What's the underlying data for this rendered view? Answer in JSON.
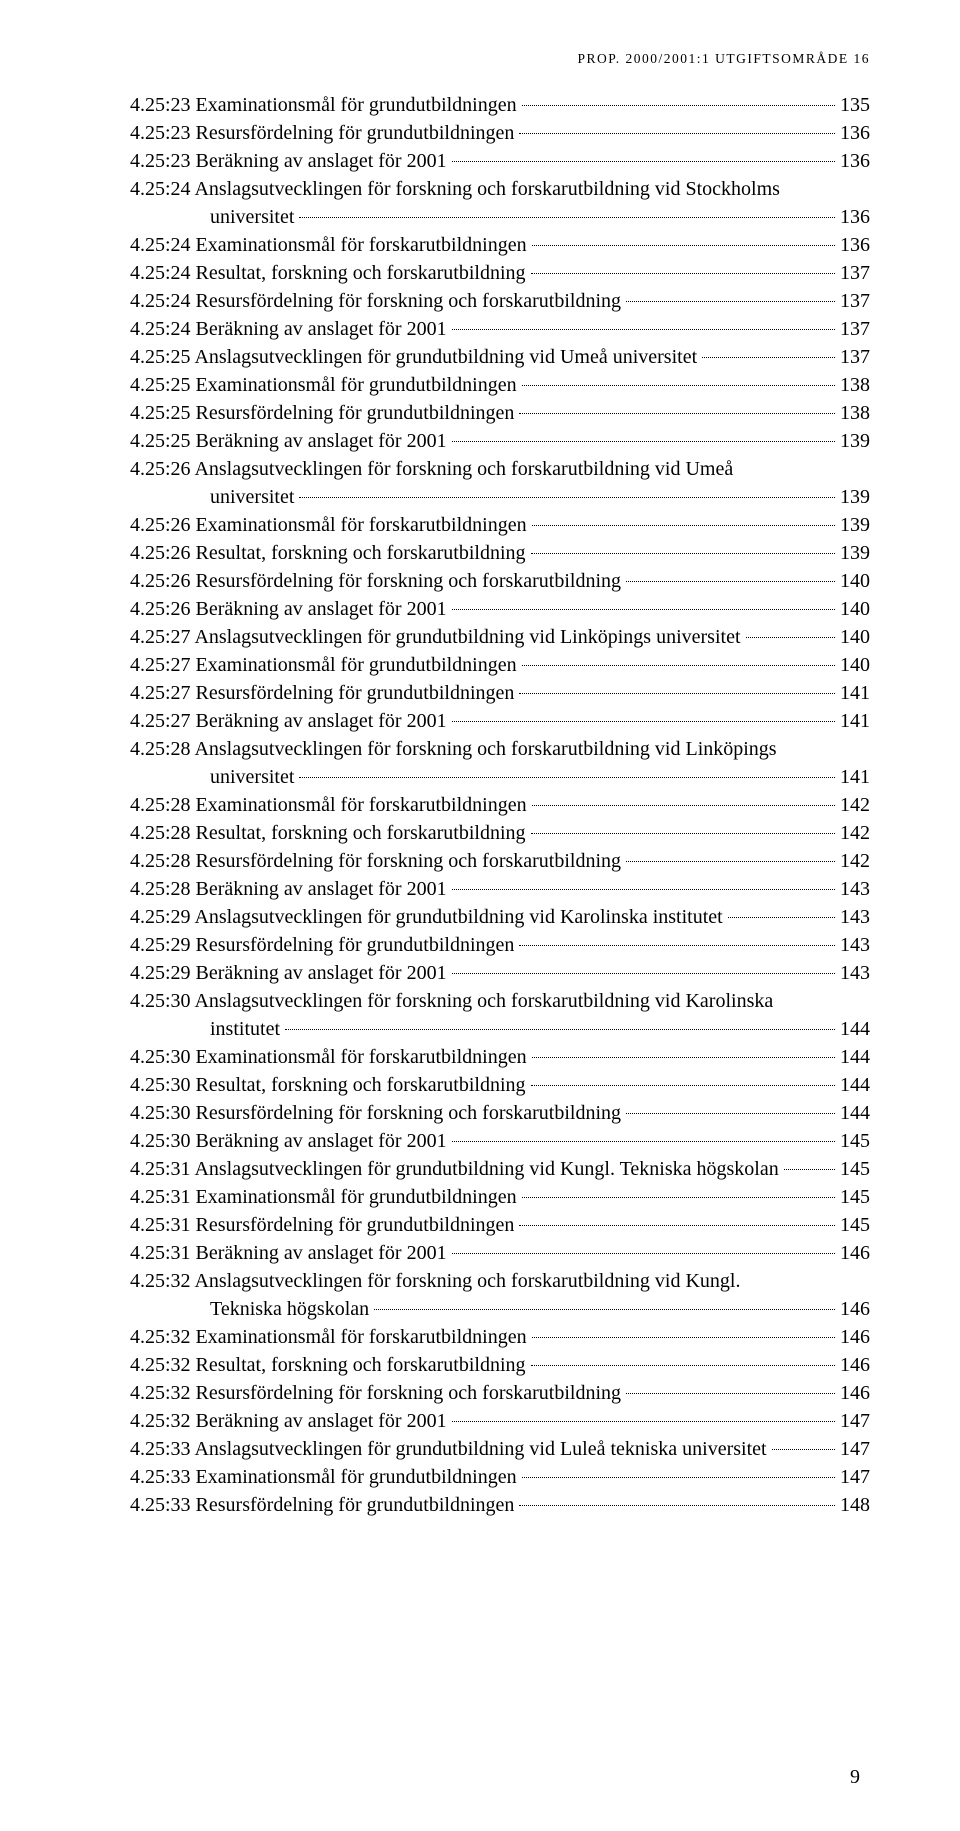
{
  "running_head": "PROP. 2000/2001:1 UTGIFTSOMRÅDE 16",
  "page_number": "9",
  "toc": [
    {
      "label": "4.25:23 Examinationsmål för grundutbildningen",
      "page": "135"
    },
    {
      "label": "4.25:23 Resursfördelning för grundutbildningen",
      "page": "136"
    },
    {
      "label": "4.25:23 Beräkning av anslaget för 2001",
      "page": "136"
    },
    {
      "label": "4.25:24 Anslagsutvecklingen för forskning och forskarutbildning vid Stockholms",
      "cont": "universitet",
      "page": "136"
    },
    {
      "label": "4.25:24 Examinationsmål för forskarutbildningen",
      "page": "136"
    },
    {
      "label": "4.25:24 Resultat, forskning och forskarutbildning",
      "page": "137"
    },
    {
      "label": "4.25:24 Resursfördelning för forskning och forskarutbildning",
      "page": "137"
    },
    {
      "label": "4.25:24 Beräkning av anslaget för 2001",
      "page": "137"
    },
    {
      "label": "4.25:25 Anslagsutvecklingen för grundutbildning vid Umeå universitet",
      "page": "137"
    },
    {
      "label": "4.25:25 Examinationsmål för grundutbildningen",
      "page": "138"
    },
    {
      "label": "4.25:25 Resursfördelning för grundutbildningen",
      "page": "138"
    },
    {
      "label": "4.25:25 Beräkning av anslaget för 2001",
      "page": "139"
    },
    {
      "label": "4.25:26 Anslagsutvecklingen för forskning och forskarutbildning vid Umeå",
      "cont": "universitet",
      "page": "139"
    },
    {
      "label": "4.25:26 Examinationsmål för forskarutbildningen",
      "page": "139"
    },
    {
      "label": "4.25:26 Resultat, forskning och forskarutbildning",
      "page": "139"
    },
    {
      "label": "4.25:26 Resursfördelning för forskning och forskarutbildning",
      "page": "140"
    },
    {
      "label": "4.25:26 Beräkning av anslaget för 2001",
      "page": "140"
    },
    {
      "label": "4.25:27 Anslagsutvecklingen för grundutbildning vid Linköpings universitet",
      "page": "140"
    },
    {
      "label": "4.25:27 Examinationsmål för grundutbildningen",
      "page": "140"
    },
    {
      "label": "4.25:27 Resursfördelning för grundutbildningen",
      "page": "141"
    },
    {
      "label": "4.25:27 Beräkning av anslaget för 2001",
      "page": "141"
    },
    {
      "label": "4.25:28 Anslagsutvecklingen för forskning och forskarutbildning vid Linköpings",
      "cont": "universitet",
      "page": "141"
    },
    {
      "label": "4.25:28 Examinationsmål för forskarutbildningen",
      "page": "142"
    },
    {
      "label": "4.25:28 Resultat, forskning och forskarutbildning",
      "page": "142"
    },
    {
      "label": "4.25:28 Resursfördelning för forskning och forskarutbildning",
      "page": "142"
    },
    {
      "label": "4.25:28 Beräkning av anslaget för 2001",
      "page": "143"
    },
    {
      "label": "4.25:29 Anslagsutvecklingen för grundutbildning vid Karolinska institutet",
      "page": "143"
    },
    {
      "label": "4.25:29 Resursfördelning för grundutbildningen",
      "page": "143"
    },
    {
      "label": "4.25:29 Beräkning av anslaget för 2001",
      "page": "143"
    },
    {
      "label": "4.25:30 Anslagsutvecklingen för forskning och forskarutbildning vid Karolinska",
      "cont": "institutet",
      "page": "144"
    },
    {
      "label": "4.25:30 Examinationsmål för forskarutbildningen",
      "page": "144"
    },
    {
      "label": "4.25:30 Resultat, forskning och forskarutbildning",
      "page": "144"
    },
    {
      "label": "4.25:30 Resursfördelning för forskning och forskarutbildning",
      "page": "144"
    },
    {
      "label": "4.25:30 Beräkning av anslaget för 2001",
      "page": "145"
    },
    {
      "label": "4.25:31 Anslagsutvecklingen för grundutbildning vid Kungl. Tekniska högskolan",
      "page": "145"
    },
    {
      "label": "4.25:31 Examinationsmål för grundutbildningen",
      "page": "145"
    },
    {
      "label": "4.25:31 Resursfördelning för grundutbildningen",
      "page": "145"
    },
    {
      "label": "4.25:31 Beräkning av anslaget för 2001",
      "page": "146"
    },
    {
      "label": "4.25:32 Anslagsutvecklingen för forskning och forskarutbildning vid Kungl.",
      "cont": "Tekniska högskolan",
      "page": "146"
    },
    {
      "label": "4.25:32 Examinationsmål för forskarutbildningen",
      "page": "146"
    },
    {
      "label": "4.25:32 Resultat, forskning och forskarutbildning",
      "page": "146"
    },
    {
      "label": "4.25:32 Resursfördelning för forskning och forskarutbildning",
      "page": "146"
    },
    {
      "label": "4.25:32 Beräkning av anslaget för 2001",
      "page": "147"
    },
    {
      "label": "4.25:33 Anslagsutvecklingen för grundutbildning vid Luleå tekniska universitet",
      "page": "147"
    },
    {
      "label": "4.25:33 Examinationsmål för grundutbildningen",
      "page": "147"
    },
    {
      "label": "4.25:33 Resursfördelning för grundutbildningen",
      "page": "148"
    }
  ]
}
